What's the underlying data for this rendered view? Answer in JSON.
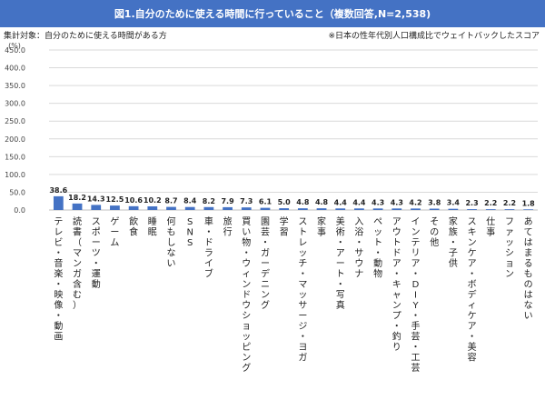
{
  "header": {
    "title": "図1.自分のために使える時間に行っていること（複数回答,N=2,538)",
    "target_note": "集計対象：自分のために使える時間がある方",
    "weight_note": "※日本の性年代別人口構成比でウェイトバックしたスコア"
  },
  "colors": {
    "banner": "#4472c4",
    "bar": "#4472c4",
    "grid": "#d9d9d9"
  },
  "chart_data": {
    "type": "bar",
    "title": "図1.自分のために使える時間に行っていること（複数回答,N=2,538)",
    "ylabel": "(%)",
    "xlabel": "",
    "ylim": [
      0,
      450
    ],
    "yticks": [
      "0.0",
      "50.0",
      "100.0",
      "150.0",
      "200.0",
      "250.0",
      "300.0",
      "350.0",
      "400.0",
      "450.0"
    ],
    "grid": true,
    "categories": [
      "テレビ・音楽・映像・動画",
      "読書（マンガ含む）",
      "スポーツ・運動",
      "ゲーム",
      "飲食",
      "睡眠",
      "何もしない",
      "SNS",
      "車・ドライブ",
      "旅行",
      "買い物・ウィンドウショッピング",
      "園芸・ガーデニング",
      "学習",
      "ストレッチ・マッサージ・ヨガ",
      "家事",
      "美術・アート・写真",
      "入浴・サウナ",
      "ペット・動物",
      "アウトドア・キャンプ・釣り",
      "インテリア・DIY・手芸・工芸",
      "その他",
      "家族・子供",
      "スキンケア・ボディケア・美容",
      "仕事",
      "ファッション",
      "あてはまるものはない"
    ],
    "values": [
      38.6,
      18.2,
      14.3,
      12.5,
      10.6,
      10.2,
      8.7,
      8.4,
      8.2,
      7.9,
      7.3,
      6.1,
      5.0,
      4.8,
      4.8,
      4.4,
      4.4,
      4.3,
      4.3,
      4.2,
      3.8,
      3.4,
      2.3,
      2.2,
      2.2,
      1.8
    ],
    "value_labels": [
      "38.6",
      "18.2",
      "14.3",
      "12.5",
      "10.6",
      "10.2",
      "8.7",
      "8.4",
      "8.2",
      "7.9",
      "7.3",
      "6.1",
      "5.0",
      "4.8",
      "4.8",
      "4.4",
      "4.4",
      "4.3",
      "4.3",
      "4.2",
      "3.8",
      "3.4",
      "2.3",
      "2.2",
      "2.2",
      "1.8"
    ]
  }
}
